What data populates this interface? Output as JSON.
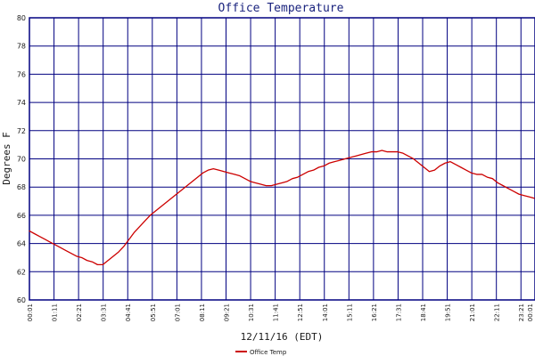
{
  "chart_data": {
    "type": "line",
    "title": "Office Temperature",
    "xlabel": "12/11/16 (EDT)",
    "ylabel": "Degrees F",
    "ylim": [
      60,
      80
    ],
    "yticks": [
      60,
      62,
      64,
      66,
      68,
      70,
      72,
      74,
      76,
      78,
      80
    ],
    "xlim_hours": [
      0.0167,
      24.0167
    ],
    "xticks": [
      {
        "label": "00:01",
        "hours": 0.0167
      },
      {
        "label": "01:11",
        "hours": 1.1833
      },
      {
        "label": "02:21",
        "hours": 2.35
      },
      {
        "label": "03:31",
        "hours": 3.5167
      },
      {
        "label": "04:41",
        "hours": 4.6833
      },
      {
        "label": "05:51",
        "hours": 5.85
      },
      {
        "label": "07:01",
        "hours": 7.0167
      },
      {
        "label": "08:11",
        "hours": 8.1833
      },
      {
        "label": "09:21",
        "hours": 9.35
      },
      {
        "label": "10:31",
        "hours": 10.5167
      },
      {
        "label": "11:41",
        "hours": 11.6833
      },
      {
        "label": "12:51",
        "hours": 12.85
      },
      {
        "label": "14:01",
        "hours": 14.0167
      },
      {
        "label": "15:11",
        "hours": 15.1833
      },
      {
        "label": "16:21",
        "hours": 16.35
      },
      {
        "label": "17:31",
        "hours": 17.5167
      },
      {
        "label": "18:41",
        "hours": 18.6833
      },
      {
        "label": "19:51",
        "hours": 19.85
      },
      {
        "label": "21:01",
        "hours": 21.0167
      },
      {
        "label": "22:11",
        "hours": 22.1833
      },
      {
        "label": "23:21",
        "hours": 23.35
      },
      {
        "label": "00:01",
        "hours": 24.0167
      }
    ],
    "grid": true,
    "legend_position": "bottom-left",
    "series": [
      {
        "name": "Office Temp",
        "color": "#cc0000",
        "points": [
          [
            0.0,
            64.9
          ],
          [
            0.25,
            64.7
          ],
          [
            0.5,
            64.5
          ],
          [
            0.75,
            64.3
          ],
          [
            1.0,
            64.1
          ],
          [
            1.25,
            63.9
          ],
          [
            1.5,
            63.7
          ],
          [
            1.75,
            63.5
          ],
          [
            2.0,
            63.3
          ],
          [
            2.25,
            63.1
          ],
          [
            2.5,
            63.0
          ],
          [
            2.75,
            62.8
          ],
          [
            3.0,
            62.7
          ],
          [
            3.25,
            62.5
          ],
          [
            3.5,
            62.5
          ],
          [
            3.75,
            62.8
          ],
          [
            4.0,
            63.1
          ],
          [
            4.25,
            63.4
          ],
          [
            4.5,
            63.8
          ],
          [
            4.75,
            64.3
          ],
          [
            5.0,
            64.8
          ],
          [
            5.25,
            65.2
          ],
          [
            5.5,
            65.6
          ],
          [
            5.75,
            66.0
          ],
          [
            6.0,
            66.3
          ],
          [
            6.25,
            66.6
          ],
          [
            6.5,
            66.9
          ],
          [
            6.75,
            67.2
          ],
          [
            7.0,
            67.5
          ],
          [
            7.25,
            67.8
          ],
          [
            7.5,
            68.1
          ],
          [
            7.75,
            68.4
          ],
          [
            8.0,
            68.7
          ],
          [
            8.25,
            69.0
          ],
          [
            8.5,
            69.2
          ],
          [
            8.75,
            69.3
          ],
          [
            9.0,
            69.2
          ],
          [
            9.25,
            69.1
          ],
          [
            9.5,
            69.0
          ],
          [
            9.75,
            68.9
          ],
          [
            10.0,
            68.8
          ],
          [
            10.25,
            68.6
          ],
          [
            10.5,
            68.4
          ],
          [
            10.75,
            68.3
          ],
          [
            11.0,
            68.2
          ],
          [
            11.25,
            68.1
          ],
          [
            11.5,
            68.1
          ],
          [
            11.75,
            68.2
          ],
          [
            12.0,
            68.3
          ],
          [
            12.25,
            68.4
          ],
          [
            12.5,
            68.6
          ],
          [
            12.75,
            68.7
          ],
          [
            13.0,
            68.9
          ],
          [
            13.25,
            69.1
          ],
          [
            13.5,
            69.2
          ],
          [
            13.75,
            69.4
          ],
          [
            14.0,
            69.5
          ],
          [
            14.25,
            69.7
          ],
          [
            14.5,
            69.8
          ],
          [
            14.75,
            69.9
          ],
          [
            15.0,
            70.0
          ],
          [
            15.25,
            70.1
          ],
          [
            15.5,
            70.2
          ],
          [
            15.75,
            70.3
          ],
          [
            16.0,
            70.4
          ],
          [
            16.25,
            70.5
          ],
          [
            16.5,
            70.5
          ],
          [
            16.75,
            70.6
          ],
          [
            17.0,
            70.5
          ],
          [
            17.25,
            70.5
          ],
          [
            17.5,
            70.5
          ],
          [
            17.75,
            70.4
          ],
          [
            18.0,
            70.2
          ],
          [
            18.25,
            70.0
          ],
          [
            18.5,
            69.7
          ],
          [
            18.75,
            69.4
          ],
          [
            19.0,
            69.1
          ],
          [
            19.25,
            69.2
          ],
          [
            19.5,
            69.5
          ],
          [
            19.75,
            69.7
          ],
          [
            20.0,
            69.8
          ],
          [
            20.25,
            69.6
          ],
          [
            20.5,
            69.4
          ],
          [
            20.75,
            69.2
          ],
          [
            21.0,
            69.0
          ],
          [
            21.25,
            68.9
          ],
          [
            21.5,
            68.9
          ],
          [
            21.75,
            68.7
          ],
          [
            22.0,
            68.6
          ],
          [
            22.25,
            68.3
          ],
          [
            22.5,
            68.1
          ],
          [
            22.75,
            67.9
          ],
          [
            23.0,
            67.7
          ],
          [
            23.25,
            67.5
          ],
          [
            23.5,
            67.4
          ],
          [
            23.75,
            67.3
          ],
          [
            24.0,
            67.2
          ]
        ]
      }
    ]
  }
}
